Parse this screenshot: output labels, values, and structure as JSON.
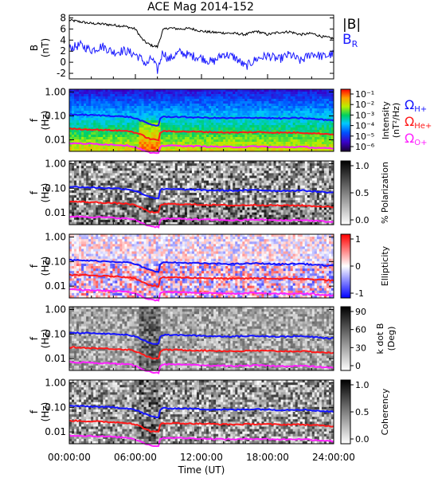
{
  "title": "ACE Mag 2014-152",
  "xlabel": "Time (UT)",
  "x_ticks": [
    "00:00:00",
    "06:00:00",
    "12:00:00",
    "18:00:00",
    "24:00:00"
  ],
  "colors": {
    "B_total": "#000000",
    "B_R": "#1a1aff",
    "H_plus": "#1414ff",
    "He_plus": "#ff1a1a",
    "O_plus": "#ff22ff"
  },
  "chart_data": [
    {
      "type": "line",
      "panel": "field",
      "ylabel": "B",
      "yunit": "(nT)",
      "ylim": [
        -3,
        8.5
      ],
      "y_ticks": [
        "8",
        "6",
        "4",
        "2",
        "0",
        "-2"
      ],
      "legend": [
        "|B|",
        "B",
        "R"
      ],
      "x_hours": [
        0,
        1,
        2,
        3,
        4,
        5,
        6,
        6.6,
        7,
        7.5,
        8,
        8.5,
        9,
        10,
        11,
        12,
        13,
        14,
        15,
        16,
        17,
        18,
        19,
        20,
        21,
        22,
        23,
        24
      ],
      "series": [
        {
          "values": [
            7.6,
            7.3,
            7.0,
            6.9,
            6.7,
            6.5,
            6.0,
            4.2,
            3.5,
            3.0,
            2.8,
            5.8,
            6.2,
            6.0,
            6.1,
            5.6,
            5.4,
            5.3,
            5.2,
            5.0,
            5.6,
            5.0,
            5.4,
            5.5,
            5.0,
            5.2,
            4.6,
            4.3
          ]
        },
        {
          "values": [
            2.5,
            3.1,
            2.2,
            2.9,
            1.8,
            2.1,
            1.4,
            0.5,
            -0.5,
            0.8,
            -1.5,
            2.0,
            0.5,
            1.8,
            1.2,
            0.8,
            0.0,
            1.5,
            0.9,
            -0.8,
            0.6,
            1.2,
            0.5,
            1.4,
            0.2,
            1.6,
            1.0,
            1.5
          ]
        }
      ]
    },
    {
      "type": "heatmap",
      "panel": "intensity",
      "ylabel": "f",
      "yunit": "(Hz)",
      "y_ticks": [
        "1.00",
        "0.10",
        "0.01"
      ],
      "colorbar_label": "Intensity",
      "colorbar_unit": "(nT²/Hz)",
      "colorbar_ticks": [
        "10⁻¹",
        "10⁻²",
        "10⁻³",
        "10⁻⁴",
        "10⁻⁵",
        "10⁻⁶"
      ],
      "legend": [
        {
          "symbol": "Ω",
          "sub": "H+"
        },
        {
          "symbol": "Ω",
          "sub": "He+"
        },
        {
          "symbol": "Ω",
          "sub": "O+"
        }
      ]
    },
    {
      "type": "heatmap",
      "panel": "polarization",
      "ylabel": "f",
      "yunit": "(Hz)",
      "y_ticks": [
        "1.00",
        "0.10",
        "0.01"
      ],
      "colorbar_label": "% Polarization",
      "colorbar_ticks": [
        "1.0",
        "0.5",
        "0.0"
      ]
    },
    {
      "type": "heatmap",
      "panel": "ellipticity",
      "ylabel": "f",
      "yunit": "(Hz)",
      "y_ticks": [
        "1.00",
        "0.10",
        "0.01"
      ],
      "colorbar_label": "Ellipticity",
      "colorbar_ticks": [
        "1",
        "0",
        "-1"
      ]
    },
    {
      "type": "heatmap",
      "panel": "kdotb",
      "ylabel": "f",
      "yunit": "(Hz)",
      "y_ticks": [
        "1.00",
        "0.10",
        "0.01"
      ],
      "colorbar_label": "k dot B",
      "colorbar_unit": "(Deg)",
      "colorbar_ticks": [
        "90",
        "60",
        "30",
        "0"
      ]
    },
    {
      "type": "heatmap",
      "panel": "coherency",
      "ylabel": "f",
      "yunit": "(Hz)",
      "y_ticks": [
        "1.00",
        "0.10",
        "0.01"
      ],
      "colorbar_label": "Coherency",
      "colorbar_ticks": [
        "1.0",
        "0.5",
        "0.0"
      ]
    }
  ],
  "gyro_x_hours": [
    0,
    2,
    4,
    5.5,
    6.3,
    6.8,
    7.3,
    7.8,
    8.1,
    8.3,
    9,
    11,
    13,
    15,
    17,
    19,
    21,
    23,
    24
  ],
  "gyro_freq_hz": {
    "H_plus": [
      0.115,
      0.108,
      0.1,
      0.09,
      0.07,
      0.055,
      0.045,
      0.04,
      0.04,
      0.09,
      0.092,
      0.088,
      0.082,
      0.08,
      0.085,
      0.078,
      0.082,
      0.07,
      0.066
    ],
    "He_plus": [
      0.029,
      0.027,
      0.025,
      0.023,
      0.018,
      0.014,
      0.011,
      0.01,
      0.01,
      0.022,
      0.023,
      0.022,
      0.021,
      0.02,
      0.021,
      0.02,
      0.02,
      0.018,
      0.017
    ],
    "O_plus": [
      0.0072,
      0.0068,
      0.0063,
      0.0057,
      0.0045,
      0.0035,
      0.0029,
      0.0027,
      0.0027,
      0.0056,
      0.0058,
      0.0055,
      0.0052,
      0.005,
      0.0053,
      0.0049,
      0.0051,
      0.0045,
      0.0042
    ]
  }
}
